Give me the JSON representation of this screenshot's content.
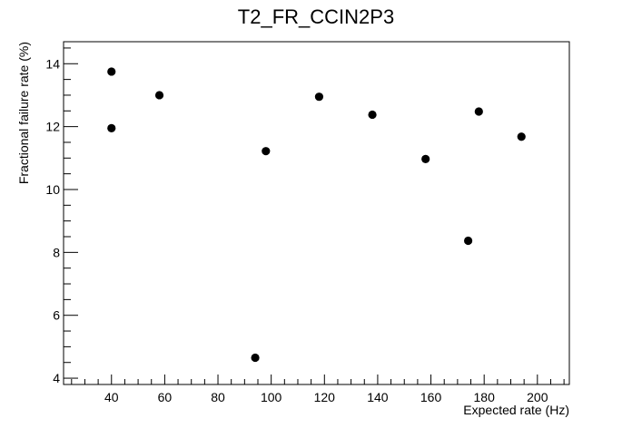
{
  "chart_data": {
    "type": "scatter",
    "title": "T2_FR_CCIN2P3",
    "xlabel": "Expected rate (Hz)",
    "ylabel": "Fractional failure rate (%)",
    "xlim": [
      22,
      212
    ],
    "ylim": [
      3.8,
      14.7
    ],
    "x_ticks": [
      40,
      60,
      80,
      100,
      120,
      140,
      160,
      180,
      200
    ],
    "y_ticks": [
      4,
      6,
      8,
      10,
      12,
      14
    ],
    "grid": false,
    "legend": "none",
    "marker_color": "#000000",
    "points": [
      {
        "x": 40,
        "y": 13.75
      },
      {
        "x": 40,
        "y": 11.95
      },
      {
        "x": 58,
        "y": 13.0
      },
      {
        "x": 94,
        "y": 4.65
      },
      {
        "x": 98,
        "y": 11.22
      },
      {
        "x": 118,
        "y": 12.95
      },
      {
        "x": 138,
        "y": 12.38
      },
      {
        "x": 158,
        "y": 10.97
      },
      {
        "x": 174,
        "y": 8.37
      },
      {
        "x": 178,
        "y": 12.48
      },
      {
        "x": 194,
        "y": 11.68
      }
    ]
  }
}
